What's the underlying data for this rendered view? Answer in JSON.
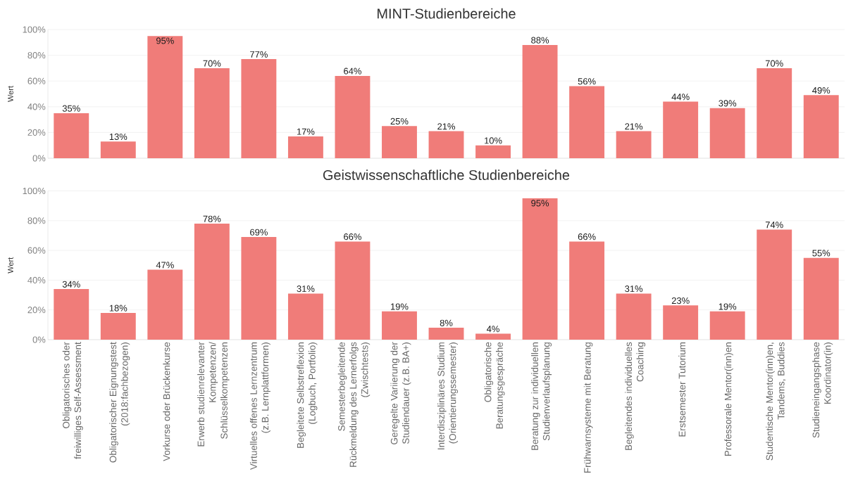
{
  "chart_data": [
    {
      "type": "bar",
      "title": "MINT-Studienbereiche",
      "ylabel": "Wert",
      "categories": [
        null,
        null,
        null,
        null,
        null,
        null,
        null,
        null,
        null,
        null,
        null,
        null,
        null,
        null,
        null,
        null,
        null
      ],
      "values": [
        35,
        13,
        95,
        70,
        77,
        17,
        64,
        25,
        21,
        10,
        88,
        56,
        21,
        44,
        39,
        70,
        49
      ],
      "value_labels": [
        "35%",
        "13%",
        "95%",
        "70%",
        "77%",
        "17%",
        "64%",
        "25%",
        "21%",
        "10%",
        "88%",
        "56%",
        "21%",
        "44%",
        "39%",
        "70%",
        "49%"
      ],
      "color": "#f07c79",
      "ylim": [
        0,
        100
      ],
      "yticks": [
        {
          "value": 0,
          "label": "0%"
        },
        {
          "value": 20,
          "label": "20%"
        },
        {
          "value": 40,
          "label": "40%"
        },
        {
          "value": 60,
          "label": "60%"
        },
        {
          "value": 80,
          "label": "80%"
        },
        {
          "value": 100,
          "label": "100%"
        }
      ],
      "grid": "y"
    },
    {
      "type": "bar",
      "title": "Geistwissenschaftliche Studienbereiche",
      "ylabel": "Wert",
      "categories": [
        "Obligatorisches oder freiwilliges Self-Assessment",
        "Obligatorischer Eignungstest (2018:fachbezogen)",
        "Vorkurse oder Brückenkurse",
        "Erwerb studienrelevanter Kompetenzen/ Schlüsselkompetenzen",
        "Virtuelles offenes Lernzentrum (z.B. Lernplattformen)",
        "Begleitete Selbstreflexion (Logbuch, Portfolio)",
        "Semesterbegleitende Rückmeldung des Lernerfolgs (Zwischtests)",
        "Geregelte Variierung der Studiendauer (z.B. BA+)",
        "Interdisziplinäres Studium (Orientierungssemester)",
        "Obligatorische Beratungsgespräche",
        "Beratung zur individuellen Studienverlaufsplanung",
        "Frühwarnsysteme mit Beratung",
        "Begleitendes individuelles Coaching",
        "Erstsemester Tutorium",
        "Professorale Mentor(inn)en",
        "Studentische Mentor(inn)en, Tandems, Buddies",
        "Studieneingangsphase Koordinator(in)"
      ],
      "values": [
        34,
        18,
        47,
        78,
        69,
        31,
        66,
        19,
        8,
        4,
        95,
        66,
        31,
        23,
        19,
        74,
        55
      ],
      "value_labels": [
        "34%",
        "18%",
        "47%",
        "78%",
        "69%",
        "31%",
        "66%",
        "19%",
        "8%",
        "4%",
        "95%",
        "66%",
        "31%",
        "23%",
        "19%",
        "74%",
        "55%"
      ],
      "color": "#f07c79",
      "ylim": [
        0,
        100
      ],
      "yticks": [
        {
          "value": 0,
          "label": "0%"
        },
        {
          "value": 20,
          "label": "20%"
        },
        {
          "value": 40,
          "label": "40%"
        },
        {
          "value": 60,
          "label": "60%"
        },
        {
          "value": 80,
          "label": "80%"
        },
        {
          "value": 100,
          "label": "100%"
        }
      ],
      "grid": "y"
    }
  ]
}
